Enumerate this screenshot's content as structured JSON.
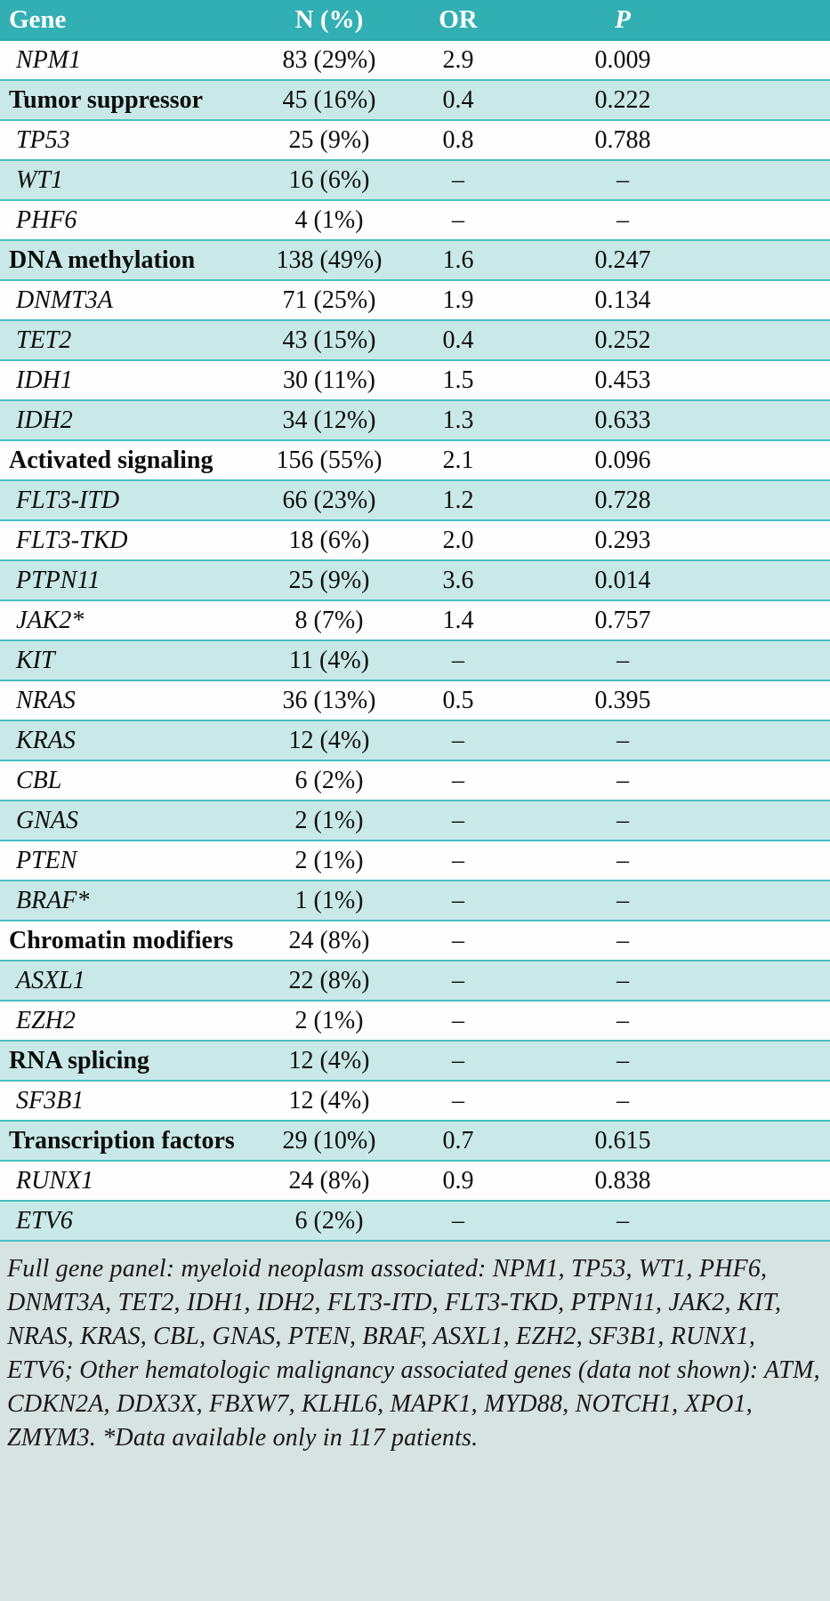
{
  "table": {
    "columns": [
      "Gene",
      "N (%)",
      "OR",
      "P"
    ],
    "rows": [
      {
        "type": "gene",
        "gene": "NPM1",
        "n": "83 (29%)",
        "or": "2.9",
        "p": "0.009"
      },
      {
        "type": "category",
        "gene": "Tumor suppressor",
        "n": "45 (16%)",
        "or": "0.4",
        "p": "0.222"
      },
      {
        "type": "gene",
        "gene": "TP53",
        "n": "25 (9%)",
        "or": "0.8",
        "p": "0.788"
      },
      {
        "type": "gene",
        "gene": "WT1",
        "n": "16 (6%)",
        "or": "–",
        "p": "–"
      },
      {
        "type": "gene",
        "gene": "PHF6",
        "n": "4 (1%)",
        "or": "–",
        "p": "–"
      },
      {
        "type": "category",
        "gene": "DNA methylation",
        "n": "138 (49%)",
        "or": "1.6",
        "p": "0.247"
      },
      {
        "type": "gene",
        "gene": "DNMT3A",
        "n": "71 (25%)",
        "or": "1.9",
        "p": "0.134"
      },
      {
        "type": "gene",
        "gene": "TET2",
        "n": "43 (15%)",
        "or": "0.4",
        "p": "0.252"
      },
      {
        "type": "gene",
        "gene": "IDH1",
        "n": "30 (11%)",
        "or": "1.5",
        "p": "0.453"
      },
      {
        "type": "gene",
        "gene": "IDH2",
        "n": "34 (12%)",
        "or": "1.3",
        "p": "0.633"
      },
      {
        "type": "category",
        "gene": "Activated signaling",
        "n": "156 (55%)",
        "or": "2.1",
        "p": "0.096"
      },
      {
        "type": "gene",
        "gene": "FLT3-ITD",
        "n": "66 (23%)",
        "or": "1.2",
        "p": "0.728"
      },
      {
        "type": "gene",
        "gene": "FLT3-TKD",
        "n": "18 (6%)",
        "or": "2.0",
        "p": "0.293"
      },
      {
        "type": "gene",
        "gene": "PTPN11",
        "n": "25 (9%)",
        "or": "3.6",
        "p": "0.014"
      },
      {
        "type": "gene",
        "gene": "JAK2*",
        "n": "8 (7%)",
        "or": "1.4",
        "p": "0.757"
      },
      {
        "type": "gene",
        "gene": "KIT",
        "n": "11 (4%)",
        "or": "–",
        "p": "–"
      },
      {
        "type": "gene",
        "gene": "NRAS",
        "n": "36 (13%)",
        "or": "0.5",
        "p": "0.395"
      },
      {
        "type": "gene",
        "gene": "KRAS",
        "n": "12 (4%)",
        "or": "–",
        "p": "–"
      },
      {
        "type": "gene",
        "gene": "CBL",
        "n": "6 (2%)",
        "or": "–",
        "p": "–"
      },
      {
        "type": "gene",
        "gene": "GNAS",
        "n": "2 (1%)",
        "or": "–",
        "p": "–"
      },
      {
        "type": "gene",
        "gene": "PTEN",
        "n": "2 (1%)",
        "or": "–",
        "p": "–"
      },
      {
        "type": "gene",
        "gene": "BRAF*",
        "n": "1 (1%)",
        "or": "–",
        "p": "–"
      },
      {
        "type": "category",
        "gene": "Chromatin modifiers",
        "n": "24 (8%)",
        "or": "–",
        "p": "–"
      },
      {
        "type": "gene",
        "gene": "ASXL1",
        "n": "22 (8%)",
        "or": "–",
        "p": "–"
      },
      {
        "type": "gene",
        "gene": "EZH2",
        "n": "2 (1%)",
        "or": "–",
        "p": "–"
      },
      {
        "type": "category",
        "gene": "RNA splicing",
        "n": "12 (4%)",
        "or": "–",
        "p": "–"
      },
      {
        "type": "gene",
        "gene": "SF3B1",
        "n": "12 (4%)",
        "or": "–",
        "p": "–"
      },
      {
        "type": "category",
        "gene": "Transcription factors",
        "n": "29 (10%)",
        "or": "0.7",
        "p": "0.615"
      },
      {
        "type": "gene",
        "gene": "RUNX1",
        "n": "24 (8%)",
        "or": "0.9",
        "p": "0.838"
      },
      {
        "type": "gene",
        "gene": "ETV6",
        "n": "6 (2%)",
        "or": "–",
        "p": "–"
      }
    ]
  },
  "footnote": "Full gene panel: myeloid neoplasm associated: NPM1, TP53, WT1, PHF6, DNMT3A, TET2, IDH1, IDH2, FLT3-ITD, FLT3-TKD, PTPN11, JAK2, KIT, NRAS, KRAS, CBL, GNAS, PTEN, BRAF, ASXL1, EZH2, SF3B1, RUNX1, ETV6; Other hematologic malignancy associated genes (data not shown): ATM, CDKN2A, DDX3X, FBXW7, KLHL6, MAPK1, MYD88, NOTCH1, XPO1, ZMYM3. *Data available only in 117 patients."
}
